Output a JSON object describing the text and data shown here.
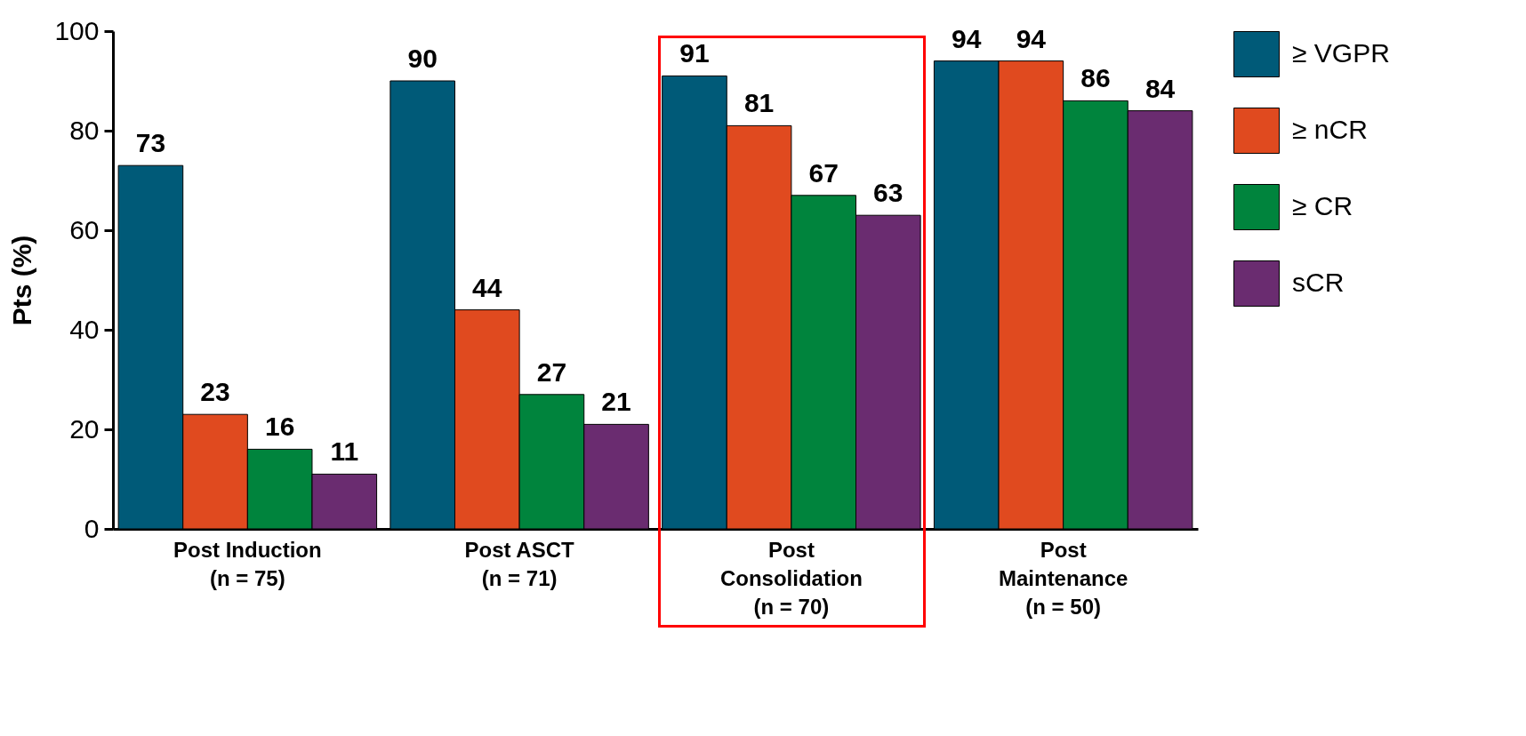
{
  "chart_data": {
    "type": "bar",
    "ylabel": "Pts (%)",
    "categories": [
      "Post Induction\n(n = 75)",
      "Post ASCT\n(n = 71)",
      "Post\nConsolidation\n(n = 70)",
      "Post\nMaintenance\n(n = 50)"
    ],
    "series": [
      {
        "name": "≥ VGPR",
        "color": "#005a78",
        "values": [
          73,
          90,
          91,
          94
        ]
      },
      {
        "name": "≥ nCR",
        "color": "#e04a1f",
        "values": [
          23,
          44,
          81,
          94
        ]
      },
      {
        "name": "≥ CR",
        "color": "#00843d",
        "values": [
          16,
          27,
          67,
          86
        ]
      },
      {
        "name": "sCR",
        "color": "#6a2c70",
        "values": [
          11,
          21,
          63,
          84
        ]
      }
    ],
    "ylim": [
      0,
      100
    ],
    "yticks": [
      0,
      20,
      40,
      60,
      80,
      100
    ],
    "grid": false,
    "legend": "right",
    "data_labels": true
  }
}
